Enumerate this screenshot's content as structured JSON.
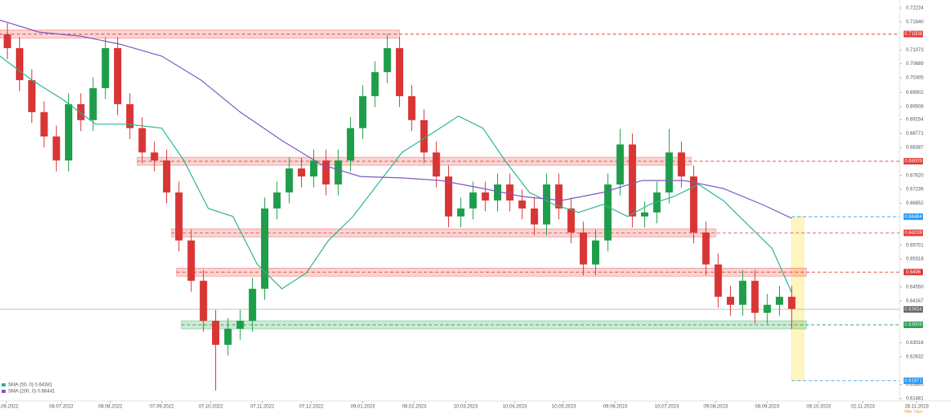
{
  "chart_data": {
    "type": "candlestick",
    "up_color": "#1e9e4a",
    "down_color": "#d93535",
    "xlim": [
      0,
      367
    ],
    "ylim": [
      0.61481,
      0.72224
    ],
    "x": [
      3,
      8,
      13,
      18,
      23,
      28,
      33,
      38,
      43,
      48,
      53,
      58,
      63,
      68,
      73,
      78,
      83,
      88,
      93,
      98,
      103,
      108,
      113,
      118,
      123,
      128,
      133,
      138,
      143,
      148,
      153,
      158,
      163,
      168,
      173,
      178,
      183,
      188,
      193,
      198,
      203,
      208,
      213,
      218,
      223,
      228,
      233,
      238,
      243,
      248,
      253,
      258,
      263,
      268,
      273,
      278,
      283,
      288,
      293,
      298,
      303,
      308,
      313,
      318,
      323
    ],
    "open": [
      0.715,
      0.7112,
      0.7024,
      0.6936,
      0.6869,
      0.6803,
      0.6958,
      0.6914,
      0.7002,
      0.7112,
      0.6958,
      0.6892,
      0.6825,
      0.6803,
      0.6715,
      0.6583,
      0.6472,
      0.6362,
      0.6296,
      0.634,
      0.6362,
      0.645,
      0.6671,
      0.6715,
      0.6781,
      0.6759,
      0.6803,
      0.6737,
      0.6803,
      0.6892,
      0.698,
      0.7046,
      0.7112,
      0.698,
      0.6914,
      0.6825,
      0.6759,
      0.6649,
      0.6671,
      0.6715,
      0.6693,
      0.6737,
      0.6693,
      0.6671,
      0.6627,
      0.6737,
      0.6671,
      0.6605,
      0.6517,
      0.6583,
      0.6737,
      0.6847,
      0.6649,
      0.666,
      0.6715,
      0.6825,
      0.6759,
      0.6605,
      0.6517,
      0.6428,
      0.6406,
      0.6472,
      0.6384,
      0.6406,
      0.6428
    ],
    "high": [
      0.718,
      0.7142,
      0.7054,
      0.6966,
      0.6899,
      0.6988,
      0.6988,
      0.7032,
      0.7142,
      0.7142,
      0.6988,
      0.6922,
      0.6855,
      0.6833,
      0.6745,
      0.6613,
      0.6502,
      0.6392,
      0.637,
      0.6392,
      0.648,
      0.6701,
      0.6745,
      0.6811,
      0.6811,
      0.6833,
      0.6833,
      0.6833,
      0.6922,
      0.701,
      0.7076,
      0.715,
      0.7142,
      0.701,
      0.6944,
      0.6855,
      0.6789,
      0.6701,
      0.6745,
      0.6745,
      0.6767,
      0.6767,
      0.6723,
      0.6701,
      0.6767,
      0.6767,
      0.6701,
      0.6635,
      0.6613,
      0.6767,
      0.689,
      0.6877,
      0.669,
      0.6745,
      0.689,
      0.6855,
      0.6789,
      0.6635,
      0.6547,
      0.6458,
      0.6502,
      0.6502,
      0.6436,
      0.6458,
      0.6458
    ],
    "low": [
      0.7082,
      0.6994,
      0.6906,
      0.6839,
      0.6773,
      0.6773,
      0.6884,
      0.6884,
      0.6972,
      0.6928,
      0.6862,
      0.6795,
      0.6773,
      0.6685,
      0.6553,
      0.6442,
      0.6332,
      0.617,
      0.6266,
      0.631,
      0.6332,
      0.642,
      0.6641,
      0.6685,
      0.6729,
      0.6729,
      0.6707,
      0.6707,
      0.6773,
      0.6862,
      0.695,
      0.7016,
      0.695,
      0.6884,
      0.6795,
      0.6729,
      0.6619,
      0.6619,
      0.6641,
      0.6663,
      0.6663,
      0.6663,
      0.6641,
      0.6597,
      0.6597,
      0.6641,
      0.6575,
      0.6487,
      0.6487,
      0.6553,
      0.6707,
      0.6619,
      0.6619,
      0.663,
      0.6685,
      0.6729,
      0.6575,
      0.6487,
      0.6398,
      0.6376,
      0.6376,
      0.6354,
      0.6354,
      0.6376,
      0.634
    ],
    "close": [
      0.7112,
      0.7024,
      0.6936,
      0.6869,
      0.6803,
      0.6958,
      0.6914,
      0.7002,
      0.7112,
      0.6958,
      0.6892,
      0.6825,
      0.6803,
      0.6715,
      0.6583,
      0.6472,
      0.6362,
      0.6296,
      0.634,
      0.6362,
      0.645,
      0.6671,
      0.6715,
      0.6781,
      0.6759,
      0.6803,
      0.6737,
      0.6803,
      0.6892,
      0.698,
      0.7046,
      0.7112,
      0.698,
      0.6914,
      0.6825,
      0.6759,
      0.6649,
      0.6671,
      0.6715,
      0.6693,
      0.6737,
      0.6693,
      0.6671,
      0.6627,
      0.6737,
      0.6671,
      0.6605,
      0.6517,
      0.6583,
      0.6737,
      0.6847,
      0.6649,
      0.666,
      0.6715,
      0.6825,
      0.6759,
      0.6605,
      0.6517,
      0.6428,
      0.6406,
      0.6472,
      0.6384,
      0.6406,
      0.6428,
      0.6395
    ],
    "series": [
      {
        "name": "SMA (50, 0) 0.64381",
        "color": "#2bb58f",
        "x": [
          0,
          13,
          26,
          39,
          52,
          66,
          75,
          85,
          95,
          105,
          115,
          125,
          134,
          144,
          154,
          164,
          177,
          187,
          197,
          206,
          216,
          226,
          236,
          246,
          256,
          265,
          275,
          285,
          295,
          305,
          315,
          323
        ],
        "values": [
          0.709,
          0.7024,
          0.6969,
          0.6903,
          0.6903,
          0.6892,
          0.6803,
          0.6671,
          0.6649,
          0.6517,
          0.645,
          0.6494,
          0.6583,
          0.6649,
          0.6737,
          0.6825,
          0.6881,
          0.6925,
          0.6892,
          0.6803,
          0.6715,
          0.6682,
          0.666,
          0.6682,
          0.6649,
          0.6682,
          0.6704,
          0.6737,
          0.6693,
          0.6627,
          0.6561,
          0.6439
        ]
      },
      {
        "name": "SMA (200, 0) 0.66441",
        "color": "#7e57c2",
        "x": [
          0,
          16,
          33,
          49,
          66,
          82,
          98,
          115,
          131,
          147,
          164,
          180,
          197,
          213,
          229,
          246,
          262,
          279,
          295,
          311,
          323
        ],
        "values": [
          0.7189,
          0.7156,
          0.7145,
          0.7123,
          0.709,
          0.7024,
          0.6936,
          0.6858,
          0.6792,
          0.6759,
          0.6755,
          0.6748,
          0.6726,
          0.6704,
          0.6693,
          0.6715,
          0.6748,
          0.6748,
          0.6726,
          0.6682,
          0.6644
        ]
      }
    ],
    "levels": [
      {
        "value": 0.71508,
        "color": "#e53935",
        "start": 0,
        "end": 163
      },
      {
        "value": 0.68009,
        "color": "#e53935",
        "start": 56,
        "end": 282
      },
      {
        "value": 0.66039,
        "color": "#e53935",
        "start": 70,
        "end": 292
      },
      {
        "value": 0.6496,
        "color": "#e53935",
        "start": 72,
        "end": 329
      },
      {
        "value": 0.63509,
        "color": "#1e9e4a",
        "start": 74,
        "end": 329
      }
    ],
    "targets": [
      {
        "value": 0.66484,
        "color": "#2196f3"
      },
      {
        "value": 0.61971,
        "color": "#2196f3"
      }
    ],
    "projection": {
      "start": 323,
      "end": 328,
      "high": 0.66484,
      "low": 0.61971
    },
    "last_price": 0.63934,
    "countdown": "09h 24m",
    "yticks": [
      {
        "value": 0.72224,
        "label": "0.72224"
      },
      {
        "value": 0.7184,
        "label": "0.71840"
      },
      {
        "value": 0.71073,
        "label": "0.71073"
      },
      {
        "value": 0.70689,
        "label": "0.70689"
      },
      {
        "value": 0.70305,
        "label": "0.70305"
      },
      {
        "value": 0.69902,
        "label": "0.69902"
      },
      {
        "value": 0.69508,
        "label": "0.69508"
      },
      {
        "value": 0.69154,
        "label": "0.69154"
      },
      {
        "value": 0.68771,
        "label": "0.68771"
      },
      {
        "value": 0.68387,
        "label": "0.68387"
      },
      {
        "value": 0.6762,
        "label": "0.67620"
      },
      {
        "value": 0.67236,
        "label": "0.67236"
      },
      {
        "value": 0.66852,
        "label": "0.66852"
      },
      {
        "value": 0.65701,
        "label": "0.65701"
      },
      {
        "value": 0.65318,
        "label": "0.65318"
      },
      {
        "value": 0.6455,
        "label": "0.64550"
      },
      {
        "value": 0.64167,
        "label": "0.64167"
      },
      {
        "value": 0.63016,
        "label": "0.63016"
      },
      {
        "value": 0.62632,
        "label": "0.62632"
      },
      {
        "value": 0.61865,
        "label": "0.61865"
      },
      {
        "value": 0.61481,
        "label": "0.61481"
      }
    ],
    "xticks": [
      {
        "value": 2.6,
        "label": "08.06.2022"
      },
      {
        "value": 25,
        "label": "08.07.2022"
      },
      {
        "value": 45,
        "label": "08.08.2022"
      },
      {
        "value": 66,
        "label": "07.09.2022"
      },
      {
        "value": 86,
        "label": "07.10.2022"
      },
      {
        "value": 107,
        "label": "07.11.2022"
      },
      {
        "value": 127,
        "label": "07.12.2022"
      },
      {
        "value": 148,
        "label": "09.01.2023"
      },
      {
        "value": 169,
        "label": "08.02.2023"
      },
      {
        "value": 190,
        "label": "10.03.2023"
      },
      {
        "value": 210,
        "label": "10.04.2023"
      },
      {
        "value": 230,
        "label": "10.05.2023"
      },
      {
        "value": 251,
        "label": "09.06.2023"
      },
      {
        "value": 272,
        "label": "10.07.2023"
      },
      {
        "value": 292,
        "label": "09.08.2023"
      },
      {
        "value": 313,
        "label": "08.09.2023"
      },
      {
        "value": 334,
        "label": "08.10.2023"
      },
      {
        "value": 352,
        "label": "02.11.2023"
      },
      {
        "value": 374,
        "label": "28.11.2023"
      }
    ]
  }
}
